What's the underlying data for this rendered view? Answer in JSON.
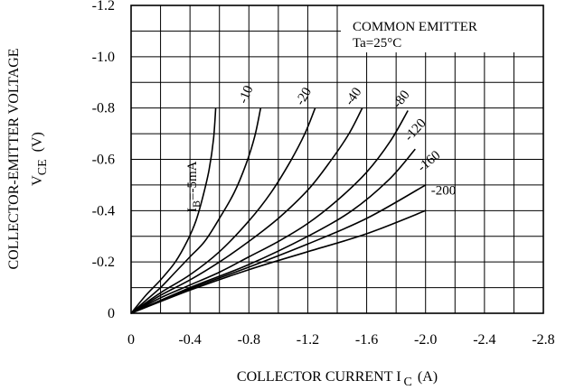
{
  "chart_data": {
    "type": "line",
    "title": "",
    "annotation": {
      "line1": "COMMON EMITTER",
      "line2": "Ta=25°C"
    },
    "xlabel": {
      "main": "COLLECTOR CURRENT I",
      "sub": "C",
      "unit": "(A)"
    },
    "ylabel": {
      "line1": "COLLECTOR-EMITTER VOLTAGE",
      "main": "V",
      "sub": "CE",
      "unit": "(V)"
    },
    "xlim": [
      0,
      -2.8
    ],
    "ylim": [
      0,
      -1.2
    ],
    "x_ticks": [
      "0",
      "-0.4",
      "-0.8",
      "-1.2",
      "-1.6",
      "-2.0",
      "-2.4",
      "-2.8"
    ],
    "y_ticks": [
      "0",
      "-0.2",
      "-0.4",
      "-0.6",
      "-0.8",
      "-1.0",
      "-1.2"
    ],
    "grid": true,
    "series": [
      {
        "name": "I_B=-5mA",
        "label": "I",
        "label_sub": "B",
        "label_rest": "=-5mA",
        "points": [
          [
            0,
            0
          ],
          [
            -0.1,
            -0.07
          ],
          [
            -0.2,
            -0.13
          ],
          [
            -0.3,
            -0.2
          ],
          [
            -0.38,
            -0.28
          ],
          [
            -0.44,
            -0.36
          ],
          [
            -0.49,
            -0.46
          ],
          [
            -0.53,
            -0.56
          ],
          [
            -0.56,
            -0.68
          ],
          [
            -0.575,
            -0.8
          ]
        ]
      },
      {
        "name": "-10",
        "label": "-10",
        "points": [
          [
            0,
            0
          ],
          [
            -0.1,
            -0.05
          ],
          [
            -0.2,
            -0.1
          ],
          [
            -0.3,
            -0.16
          ],
          [
            -0.4,
            -0.22
          ],
          [
            -0.5,
            -0.28
          ],
          [
            -0.6,
            -0.37
          ],
          [
            -0.7,
            -0.47
          ],
          [
            -0.78,
            -0.58
          ],
          [
            -0.84,
            -0.69
          ],
          [
            -0.88,
            -0.8
          ]
        ]
      },
      {
        "name": "-20",
        "label": "-20",
        "points": [
          [
            0,
            0
          ],
          [
            -0.2,
            -0.08
          ],
          [
            -0.4,
            -0.15
          ],
          [
            -0.6,
            -0.24
          ],
          [
            -0.8,
            -0.36
          ],
          [
            -0.95,
            -0.47
          ],
          [
            -1.08,
            -0.59
          ],
          [
            -1.18,
            -0.7
          ],
          [
            -1.25,
            -0.8
          ]
        ]
      },
      {
        "name": "-40",
        "label": "-40",
        "points": [
          [
            0,
            0
          ],
          [
            -0.2,
            -0.07
          ],
          [
            -0.4,
            -0.13
          ],
          [
            -0.6,
            -0.2
          ],
          [
            -0.8,
            -0.28
          ],
          [
            -1.0,
            -0.37
          ],
          [
            -1.2,
            -0.48
          ],
          [
            -1.35,
            -0.59
          ],
          [
            -1.48,
            -0.7
          ],
          [
            -1.57,
            -0.8
          ]
        ]
      },
      {
        "name": "-80",
        "label": "-80",
        "points": [
          [
            0,
            0
          ],
          [
            -0.2,
            -0.06
          ],
          [
            -0.4,
            -0.11
          ],
          [
            -0.6,
            -0.16
          ],
          [
            -0.8,
            -0.22
          ],
          [
            -1.0,
            -0.28
          ],
          [
            -1.2,
            -0.35
          ],
          [
            -1.4,
            -0.44
          ],
          [
            -1.6,
            -0.55
          ],
          [
            -1.76,
            -0.67
          ],
          [
            -1.88,
            -0.79
          ]
        ]
      },
      {
        "name": "-120",
        "label": "-120",
        "points": [
          [
            0,
            0
          ],
          [
            -0.4,
            -0.1
          ],
          [
            -0.8,
            -0.19
          ],
          [
            -1.2,
            -0.3
          ],
          [
            -1.5,
            -0.4
          ],
          [
            -1.75,
            -0.52
          ],
          [
            -1.93,
            -0.64
          ]
        ]
      },
      {
        "name": "-160",
        "label": "-160",
        "points": [
          [
            0,
            0
          ],
          [
            -0.4,
            -0.095
          ],
          [
            -0.8,
            -0.18
          ],
          [
            -1.2,
            -0.27
          ],
          [
            -1.6,
            -0.37
          ],
          [
            -2.0,
            -0.5
          ]
        ]
      },
      {
        "name": "-200",
        "label": "-200",
        "points": [
          [
            0,
            0
          ],
          [
            -0.4,
            -0.09
          ],
          [
            -0.8,
            -0.17
          ],
          [
            -1.2,
            -0.24
          ],
          [
            -1.6,
            -0.31
          ],
          [
            -2.0,
            -0.4
          ]
        ]
      }
    ]
  }
}
